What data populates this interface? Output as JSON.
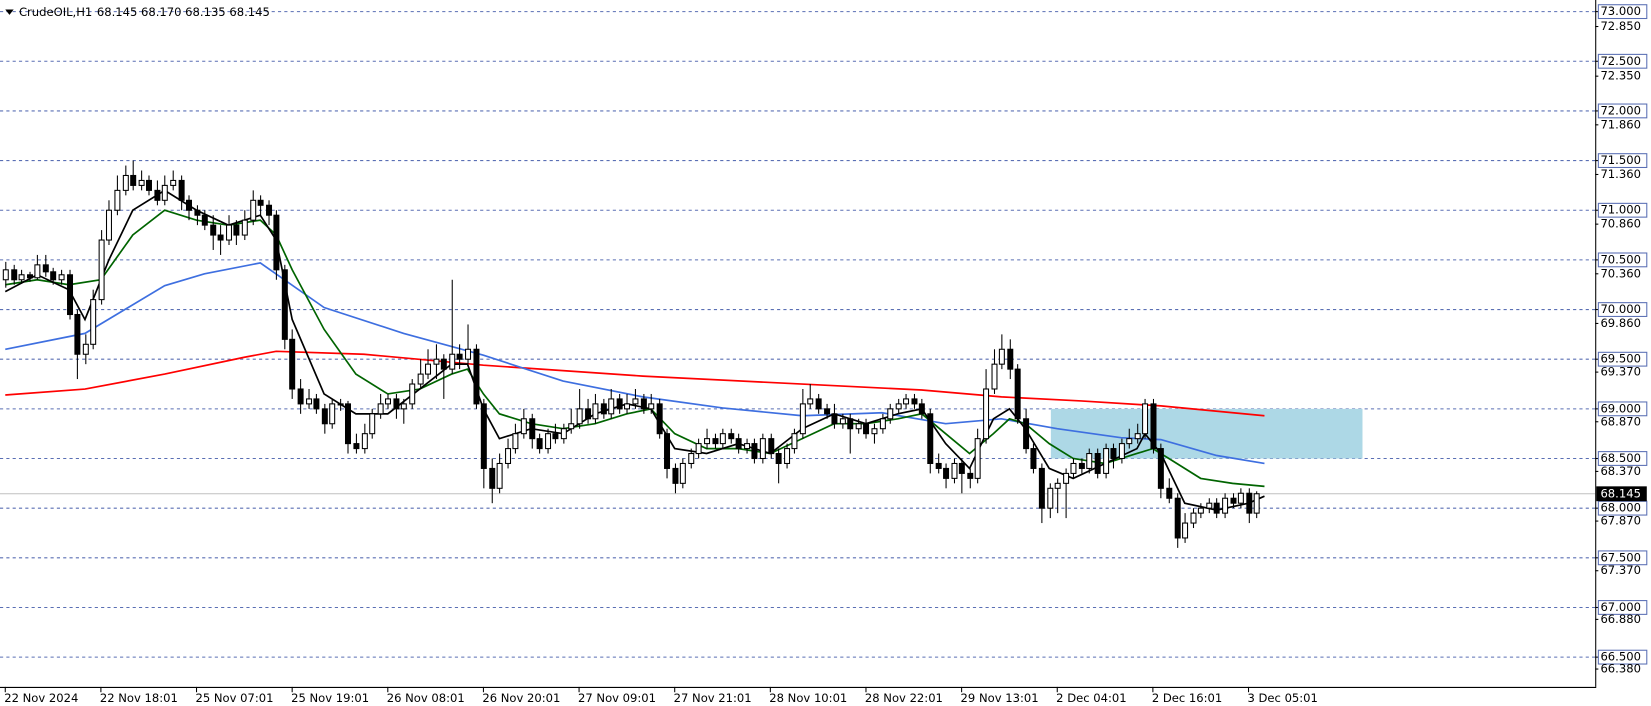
{
  "chart_data": {
    "type": "candlestick",
    "symbol": "CrudeOIL,H1",
    "quote": "68.145 68.170 68.135 68.145",
    "xlim": [
      -0.66,
      199.5
    ],
    "ylim": [
      66.2,
      73.117
    ],
    "yticks": [
      {
        "value": 73,
        "label": "73.000"
      },
      {
        "value": 72.5,
        "label": "72.500"
      },
      {
        "value": 72,
        "label": "72.000"
      },
      {
        "value": 71.5,
        "label": "71.500"
      },
      {
        "value": 71,
        "label": "71.000"
      },
      {
        "value": 70.5,
        "label": "70.500"
      },
      {
        "value": 70,
        "label": "70.000"
      },
      {
        "value": 69.5,
        "label": "69.500"
      },
      {
        "value": 69,
        "label": "69.000"
      },
      {
        "value": 68.5,
        "label": "68.500"
      },
      {
        "value": 68,
        "label": "68.000"
      },
      {
        "value": 67.5,
        "label": "67.500"
      },
      {
        "value": 67,
        "label": "67.000"
      },
      {
        "value": 66.5,
        "label": "66.500"
      }
    ],
    "yticks_minor": [
      {
        "value": 72.85,
        "label": "72.850"
      },
      {
        "value": 72.35,
        "label": "72.350"
      },
      {
        "value": 71.86,
        "label": "71.860"
      },
      {
        "value": 71.36,
        "label": "71.360"
      },
      {
        "value": 70.86,
        "label": "70.860"
      },
      {
        "value": 70.36,
        "label": "70.360"
      },
      {
        "value": 69.86,
        "label": "69.860"
      },
      {
        "value": 69.37,
        "label": "69.370"
      },
      {
        "value": 68.87,
        "label": "68.870"
      },
      {
        "value": 68.37,
        "label": "68.370"
      },
      {
        "value": 67.87,
        "label": "67.870"
      },
      {
        "value": 67.37,
        "label": "67.370"
      },
      {
        "value": 66.88,
        "label": "66.880"
      },
      {
        "value": 66.38,
        "label": "66.380"
      }
    ],
    "xticks": [
      {
        "value": 0,
        "label": "22 Nov 2024"
      },
      {
        "value": 12,
        "label": "22 Nov 18:01"
      },
      {
        "value": 24,
        "label": "25 Nov 07:01"
      },
      {
        "value": 36,
        "label": "25 Nov 19:01"
      },
      {
        "value": 48,
        "label": "26 Nov 08:01"
      },
      {
        "value": 60,
        "label": "26 Nov 20:01"
      },
      {
        "value": 72,
        "label": "27 Nov 09:01"
      },
      {
        "value": 84,
        "label": "27 Nov 21:01"
      },
      {
        "value": 96,
        "label": "28 Nov 10:01"
      },
      {
        "value": 108,
        "label": "28 Nov 22:01"
      },
      {
        "value": 120,
        "label": "29 Nov 13:01"
      },
      {
        "value": 132,
        "label": "2 Dec 04:01"
      },
      {
        "value": 144,
        "label": "2 Dec 16:01"
      },
      {
        "value": 156,
        "label": "3 Dec 05:01"
      }
    ],
    "grid": true,
    "grid_color": "#5a6fb4",
    "bull_color": "#ffffff",
    "bear_color": "#000000",
    "last_price": 68.145,
    "zone": {
      "x": [
        131.2,
        170.3
      ],
      "y": [
        68.5,
        69.0
      ],
      "color": "#add8e6"
    },
    "candles": [
      [
        70.3,
        70.48,
        70.22,
        70.4
      ],
      [
        70.4,
        70.45,
        70.25,
        70.3
      ],
      [
        70.3,
        70.4,
        70.26,
        70.35
      ],
      [
        70.35,
        70.38,
        70.28,
        70.32
      ],
      [
        70.32,
        70.55,
        70.3,
        70.45
      ],
      [
        70.45,
        70.55,
        70.33,
        70.38
      ],
      [
        70.38,
        70.42,
        70.25,
        70.3
      ],
      [
        70.3,
        70.4,
        70.25,
        70.35
      ],
      [
        70.35,
        70.4,
        69.9,
        69.95
      ],
      [
        69.95,
        70.0,
        69.3,
        69.55
      ],
      [
        69.55,
        69.75,
        69.45,
        69.65
      ],
      [
        69.65,
        70.2,
        69.6,
        70.1
      ],
      [
        70.1,
        70.8,
        70.05,
        70.7
      ],
      [
        70.7,
        71.1,
        70.65,
        71.0
      ],
      [
        71.0,
        71.35,
        70.95,
        71.2
      ],
      [
        71.2,
        71.45,
        71.15,
        71.35
      ],
      [
        71.35,
        71.5,
        71.2,
        71.25
      ],
      [
        71.25,
        71.4,
        71.2,
        71.3
      ],
      [
        71.3,
        71.35,
        71.15,
        71.2
      ],
      [
        71.2,
        71.3,
        71.05,
        71.1
      ],
      [
        71.1,
        71.35,
        71.05,
        71.25
      ],
      [
        71.25,
        71.4,
        71.2,
        71.3
      ],
      [
        71.3,
        71.35,
        71.0,
        71.1
      ],
      [
        71.1,
        71.15,
        70.9,
        71.0
      ],
      [
        71.0,
        71.05,
        70.85,
        70.95
      ],
      [
        70.95,
        71.0,
        70.8,
        70.85
      ],
      [
        70.85,
        70.95,
        70.6,
        70.75
      ],
      [
        70.75,
        70.85,
        70.55,
        70.7
      ],
      [
        70.7,
        70.95,
        70.65,
        70.85
      ],
      [
        70.85,
        70.9,
        70.65,
        70.75
      ],
      [
        70.75,
        71.0,
        70.7,
        70.9
      ],
      [
        70.9,
        71.2,
        70.85,
        71.1
      ],
      [
        71.1,
        71.15,
        70.95,
        71.05
      ],
      [
        71.05,
        71.1,
        70.85,
        70.95
      ],
      [
        70.95,
        71.0,
        70.3,
        70.4
      ],
      [
        70.4,
        70.45,
        69.6,
        69.7
      ],
      [
        69.7,
        69.8,
        69.1,
        69.2
      ],
      [
        69.2,
        69.3,
        68.95,
        69.05
      ],
      [
        69.05,
        69.2,
        69.0,
        69.1
      ],
      [
        69.1,
        69.15,
        68.95,
        69.0
      ],
      [
        69.0,
        69.05,
        68.75,
        68.85
      ],
      [
        68.85,
        69.1,
        68.8,
        69.05
      ],
      [
        69.05,
        69.1,
        68.98,
        69.05
      ],
      [
        69.05,
        69.08,
        68.55,
        68.65
      ],
      [
        68.65,
        68.75,
        68.55,
        68.6
      ],
      [
        68.6,
        68.85,
        68.55,
        68.75
      ],
      [
        68.75,
        69.0,
        68.7,
        68.95
      ],
      [
        68.95,
        69.15,
        68.9,
        69.05
      ],
      [
        69.05,
        69.15,
        69.0,
        69.1
      ],
      [
        69.1,
        69.15,
        68.9,
        69.0
      ],
      [
        69.0,
        69.1,
        68.85,
        69.05
      ],
      [
        69.05,
        69.3,
        69.0,
        69.25
      ],
      [
        69.25,
        69.5,
        69.2,
        69.35
      ],
      [
        69.35,
        69.6,
        69.3,
        69.45
      ],
      [
        69.45,
        69.65,
        69.3,
        69.5
      ],
      [
        69.5,
        69.55,
        69.1,
        69.4
      ],
      [
        69.4,
        70.3,
        69.35,
        69.55
      ],
      [
        69.55,
        69.65,
        69.4,
        69.5
      ],
      [
        69.5,
        69.85,
        69.45,
        69.6
      ],
      [
        69.6,
        69.65,
        69.0,
        69.05
      ],
      [
        69.05,
        69.1,
        68.2,
        68.4
      ],
      [
        68.4,
        68.5,
        68.05,
        68.2
      ],
      [
        68.2,
        68.55,
        68.15,
        68.45
      ],
      [
        68.45,
        68.7,
        68.4,
        68.6
      ],
      [
        68.6,
        68.85,
        68.55,
        68.75
      ],
      [
        68.75,
        69.0,
        68.7,
        68.9
      ],
      [
        68.9,
        68.95,
        68.6,
        68.7
      ],
      [
        68.7,
        68.75,
        68.55,
        68.6
      ],
      [
        68.6,
        68.8,
        68.55,
        68.75
      ],
      [
        68.75,
        68.85,
        68.65,
        68.7
      ],
      [
        68.7,
        68.85,
        68.65,
        68.8
      ],
      [
        68.8,
        69.0,
        68.75,
        68.85
      ],
      [
        68.85,
        69.2,
        68.8,
        69.0
      ],
      [
        69.0,
        69.1,
        68.85,
        68.9
      ],
      [
        68.9,
        69.15,
        68.85,
        69.05
      ],
      [
        69.05,
        69.1,
        68.9,
        68.95
      ],
      [
        68.95,
        69.2,
        68.9,
        69.1
      ],
      [
        69.1,
        69.15,
        68.95,
        69.0
      ],
      [
        69.0,
        69.15,
        68.95,
        69.05
      ],
      [
        69.05,
        69.2,
        69.0,
        69.1
      ],
      [
        69.1,
        69.15,
        68.95,
        69.0
      ],
      [
        69.0,
        69.15,
        68.95,
        69.05
      ],
      [
        69.05,
        69.1,
        68.7,
        68.75
      ],
      [
        68.75,
        68.8,
        68.3,
        68.4
      ],
      [
        68.4,
        68.45,
        68.15,
        68.25
      ],
      [
        68.25,
        68.5,
        68.2,
        68.45
      ],
      [
        68.45,
        68.6,
        68.4,
        68.55
      ],
      [
        68.55,
        68.7,
        68.5,
        68.65
      ],
      [
        68.65,
        68.8,
        68.6,
        68.7
      ],
      [
        68.7,
        68.75,
        68.6,
        68.65
      ],
      [
        68.65,
        68.8,
        68.6,
        68.75
      ],
      [
        68.75,
        68.8,
        68.65,
        68.7
      ],
      [
        68.7,
        68.75,
        68.55,
        68.6
      ],
      [
        68.6,
        68.7,
        68.55,
        68.65
      ],
      [
        68.65,
        68.7,
        68.45,
        68.5
      ],
      [
        68.5,
        68.75,
        68.45,
        68.7
      ],
      [
        68.7,
        68.75,
        68.5,
        68.55
      ],
      [
        68.55,
        68.6,
        68.25,
        68.45
      ],
      [
        68.45,
        68.65,
        68.4,
        68.6
      ],
      [
        68.6,
        68.8,
        68.55,
        68.75
      ],
      [
        68.75,
        69.2,
        68.7,
        69.05
      ],
      [
        69.05,
        69.25,
        69.0,
        69.1
      ],
      [
        69.1,
        69.15,
        68.95,
        69.0
      ],
      [
        69.0,
        69.05,
        68.9,
        68.95
      ],
      [
        68.95,
        69.05,
        68.8,
        68.85
      ],
      [
        68.85,
        68.95,
        68.8,
        68.9
      ],
      [
        68.9,
        68.95,
        68.55,
        68.8
      ],
      [
        68.8,
        68.9,
        68.75,
        68.85
      ],
      [
        68.85,
        68.9,
        68.7,
        68.75
      ],
      [
        68.75,
        68.85,
        68.65,
        68.8
      ],
      [
        68.8,
        68.95,
        68.75,
        68.9
      ],
      [
        68.9,
        69.05,
        68.85,
        69.0
      ],
      [
        69.0,
        69.1,
        68.95,
        69.05
      ],
      [
        69.05,
        69.15,
        69.0,
        69.1
      ],
      [
        69.1,
        69.15,
        69.0,
        69.05
      ],
      [
        69.05,
        69.1,
        68.9,
        68.95
      ],
      [
        68.95,
        69.0,
        68.35,
        68.45
      ],
      [
        68.45,
        68.55,
        68.35,
        68.4
      ],
      [
        68.4,
        68.45,
        68.2,
        68.3
      ],
      [
        68.3,
        68.5,
        68.25,
        68.45
      ],
      [
        68.45,
        68.5,
        68.15,
        68.35
      ],
      [
        68.35,
        68.4,
        68.2,
        68.3
      ],
      [
        68.3,
        68.8,
        68.25,
        68.7
      ],
      [
        68.7,
        69.4,
        68.65,
        69.2
      ],
      [
        69.2,
        69.6,
        69.15,
        69.45
      ],
      [
        69.45,
        69.75,
        69.4,
        69.6
      ],
      [
        69.6,
        69.7,
        69.3,
        69.4
      ],
      [
        69.4,
        69.45,
        68.85,
        68.9
      ],
      [
        68.9,
        69.0,
        68.55,
        68.6
      ],
      [
        68.6,
        68.65,
        68.35,
        68.4
      ],
      [
        68.4,
        68.45,
        67.85,
        68.0
      ],
      [
        68.0,
        68.25,
        67.9,
        68.2
      ],
      [
        68.2,
        68.3,
        67.95,
        68.25
      ],
      [
        68.25,
        68.4,
        67.9,
        68.35
      ],
      [
        68.35,
        68.5,
        68.3,
        68.45
      ],
      [
        68.45,
        68.5,
        68.35,
        68.4
      ],
      [
        68.4,
        68.6,
        68.35,
        68.55
      ],
      [
        68.55,
        68.6,
        68.3,
        68.35
      ],
      [
        68.35,
        68.65,
        68.3,
        68.6
      ],
      [
        68.6,
        68.65,
        68.4,
        68.5
      ],
      [
        68.5,
        68.7,
        68.45,
        68.65
      ],
      [
        68.65,
        68.8,
        68.6,
        68.7
      ],
      [
        68.7,
        68.85,
        68.65,
        68.75
      ],
      [
        68.75,
        69.1,
        68.7,
        69.05
      ],
      [
        69.05,
        69.1,
        68.55,
        68.6
      ],
      [
        68.6,
        68.65,
        68.1,
        68.2
      ],
      [
        68.2,
        68.3,
        68.05,
        68.1
      ],
      [
        68.1,
        68.15,
        67.6,
        67.7
      ],
      [
        67.7,
        67.95,
        67.65,
        67.85
      ],
      [
        67.85,
        68.0,
        67.8,
        67.95
      ],
      [
        67.95,
        68.05,
        67.9,
        68.0
      ],
      [
        68.0,
        68.1,
        67.95,
        68.05
      ],
      [
        68.05,
        68.1,
        67.9,
        67.95
      ],
      [
        67.95,
        68.15,
        67.9,
        68.1
      ],
      [
        68.1,
        68.15,
        68.0,
        68.05
      ],
      [
        68.05,
        68.2,
        68.0,
        68.15
      ],
      [
        68.15,
        68.2,
        67.85,
        67.95
      ],
      [
        67.95,
        68.17,
        67.9,
        68.145
      ]
    ],
    "series": [
      {
        "color": "#ff0000",
        "x": [
          0,
          10,
          20,
          30,
          34,
          45,
          60,
          80,
          100,
          115,
          125,
          135,
          145,
          158
        ],
        "values": [
          69.14,
          69.2,
          69.35,
          69.52,
          69.58,
          69.55,
          69.44,
          69.33,
          69.25,
          69.19,
          69.12,
          69.08,
          69.03,
          68.93
        ]
      },
      {
        "color": "#3e6fe0",
        "x": [
          0,
          10,
          20,
          25,
          32,
          40,
          50,
          60,
          70,
          80,
          90,
          100,
          110,
          118,
          125,
          132,
          140,
          145,
          152,
          158
        ],
        "values": [
          69.6,
          69.76,
          70.24,
          70.36,
          70.47,
          70.02,
          69.76,
          69.54,
          69.28,
          69.12,
          69.01,
          68.93,
          68.96,
          68.85,
          68.9,
          68.8,
          68.71,
          68.69,
          68.53,
          68.45
        ]
      },
      {
        "color": "#006400",
        "x": [
          0,
          4,
          8,
          12,
          16,
          20,
          24,
          28,
          32,
          34,
          36,
          40,
          44,
          48,
          52,
          56,
          58,
          60,
          62,
          66,
          70,
          74,
          78,
          81,
          84,
          88,
          92,
          96,
          100,
          104,
          108,
          112,
          115,
          118,
          121,
          124,
          126,
          128,
          131,
          134,
          138,
          142,
          144,
          146,
          150,
          154,
          158
        ],
        "values": [
          70.25,
          70.3,
          70.25,
          70.3,
          70.75,
          71.0,
          70.9,
          70.85,
          70.9,
          70.75,
          70.4,
          69.8,
          69.35,
          69.15,
          69.2,
          69.35,
          69.4,
          69.15,
          68.95,
          68.85,
          68.8,
          68.85,
          68.95,
          69.0,
          68.75,
          68.6,
          68.6,
          68.55,
          68.7,
          68.85,
          68.85,
          68.9,
          68.95,
          68.75,
          68.55,
          68.75,
          68.9,
          68.85,
          68.65,
          68.5,
          68.45,
          68.55,
          68.6,
          68.5,
          68.3,
          68.25,
          68.22
        ]
      },
      {
        "color": "#000000",
        "x": [
          0,
          4,
          8,
          10,
          13,
          16,
          20,
          24,
          28,
          32,
          34,
          36,
          40,
          44,
          48,
          52,
          56,
          58,
          60,
          62,
          66,
          70,
          74,
          78,
          81,
          84,
          88,
          92,
          96,
          100,
          104,
          108,
          112,
          115,
          118,
          121,
          124,
          126,
          128,
          131,
          134,
          138,
          142,
          143,
          145,
          148,
          152,
          156,
          158
        ],
        "values": [
          70.18,
          70.35,
          70.2,
          69.9,
          70.5,
          71.0,
          71.2,
          71.0,
          70.85,
          70.95,
          70.7,
          69.9,
          69.15,
          68.95,
          68.95,
          69.2,
          69.45,
          69.45,
          69.0,
          68.7,
          68.8,
          68.75,
          68.95,
          69.05,
          69.0,
          68.6,
          68.55,
          68.65,
          68.55,
          68.8,
          68.95,
          68.85,
          68.95,
          69.0,
          68.65,
          68.4,
          68.9,
          69.0,
          68.8,
          68.4,
          68.3,
          68.45,
          68.6,
          68.75,
          68.55,
          68.05,
          67.98,
          68.05,
          68.12
        ]
      }
    ]
  }
}
